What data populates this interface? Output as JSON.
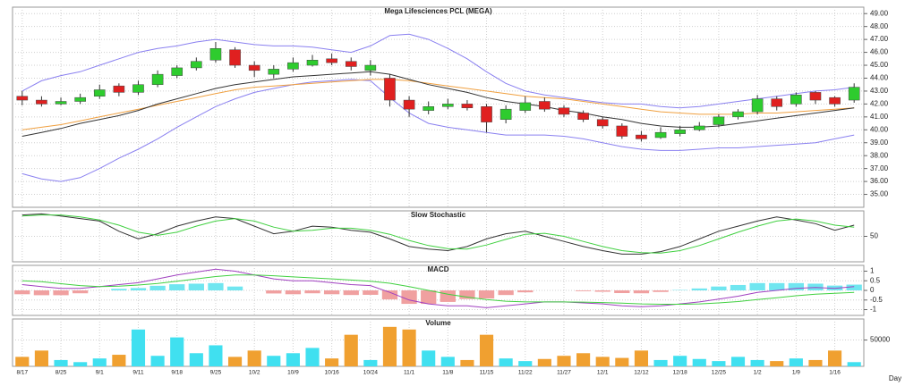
{
  "chart_data": [
    {
      "type": "candlestick",
      "title": "Mega Lifesciences PCL (MEGA)",
      "ylim": [
        34,
        49.5
      ],
      "yticks": [
        {
          "value": 35,
          "label": "35.00"
        },
        {
          "value": 36,
          "label": "36.00"
        },
        {
          "value": 37,
          "label": "37.00"
        },
        {
          "value": 38,
          "label": "38.00"
        },
        {
          "value": 39,
          "label": "39.00"
        },
        {
          "value": 40,
          "label": "40.00"
        },
        {
          "value": 41,
          "label": "41.00"
        },
        {
          "value": 42,
          "label": "42.00"
        },
        {
          "value": 43,
          "label": "43.00"
        },
        {
          "value": 44,
          "label": "44.00"
        },
        {
          "value": 45,
          "label": "45.00"
        },
        {
          "value": 46,
          "label": "46.00"
        },
        {
          "value": 47,
          "label": "47.00"
        },
        {
          "value": 48,
          "label": "48.00"
        },
        {
          "value": 49,
          "label": "49.00"
        }
      ],
      "grid": true,
      "up_color": "#2ecc2e",
      "down_color": "#e02020",
      "open": [
        42.6,
        42.3,
        42.0,
        42.2,
        42.6,
        43.4,
        42.9,
        43.5,
        44.2,
        44.8,
        45.4,
        46.2,
        45.0,
        44.3,
        44.7,
        45.0,
        45.5,
        45.3,
        44.6,
        44.0,
        42.3,
        41.5,
        41.8,
        42.0,
        41.8,
        40.8,
        41.5,
        42.2,
        41.7,
        41.3,
        40.8,
        40.3,
        39.6,
        39.4,
        39.7,
        40.0,
        40.4,
        41.0,
        41.4,
        42.4,
        42.0,
        42.9,
        42.5,
        42.3
      ],
      "high": [
        43.0,
        42.6,
        42.5,
        42.8,
        43.5,
        43.6,
        43.8,
        44.6,
        45.0,
        45.6,
        46.8,
        46.4,
        45.3,
        45.0,
        45.6,
        45.8,
        45.9,
        45.6,
        45.4,
        44.3,
        42.6,
        42.2,
        42.4,
        42.3,
        42.0,
        41.9,
        42.6,
        42.5,
        41.9,
        41.5,
        41.0,
        40.5,
        39.9,
        40.2,
        40.3,
        40.6,
        41.2,
        41.6,
        42.7,
        42.6,
        42.9,
        43.0,
        42.6,
        43.6
      ],
      "low": [
        41.9,
        41.8,
        41.9,
        42.0,
        42.4,
        42.6,
        42.7,
        43.3,
        44.0,
        44.6,
        45.2,
        44.8,
        44.1,
        44.0,
        44.5,
        44.9,
        45.0,
        44.6,
        44.2,
        41.8,
        41.0,
        41.2,
        41.6,
        41.5,
        39.8,
        40.5,
        41.3,
        41.4,
        41.0,
        40.6,
        40.1,
        39.3,
        39.1,
        39.3,
        39.5,
        39.9,
        40.2,
        40.8,
        41.2,
        41.5,
        41.8,
        42.0,
        41.8,
        42.1
      ],
      "close": [
        42.3,
        42.0,
        42.2,
        42.5,
        43.1,
        42.9,
        43.5,
        44.3,
        44.8,
        45.3,
        46.3,
        45.0,
        44.6,
        44.7,
        45.2,
        45.4,
        45.2,
        44.9,
        45.0,
        42.3,
        41.6,
        41.8,
        42.0,
        41.7,
        40.6,
        41.6,
        42.1,
        41.6,
        41.2,
        40.8,
        40.3,
        39.5,
        39.3,
        39.8,
        40.0,
        40.3,
        41.0,
        41.4,
        42.4,
        41.8,
        42.7,
        42.3,
        42.0,
        43.3
      ],
      "overlays": [
        {
          "color": "#8a80f0",
          "values": [
            43.0,
            43.8,
            44.2,
            44.5,
            45.0,
            45.5,
            46.0,
            46.3,
            46.5,
            46.8,
            47.0,
            46.8,
            46.6,
            46.5,
            46.5,
            46.4,
            46.2,
            46.0,
            46.5,
            47.3,
            47.4,
            47.0,
            46.3,
            45.5,
            44.5,
            43.6,
            43.0,
            42.7,
            42.5,
            42.3,
            42.1,
            42.0,
            42.0,
            41.8,
            41.7,
            41.8,
            42.0,
            42.2,
            42.4,
            42.6,
            42.8,
            43.0,
            43.1,
            43.3
          ]
        },
        {
          "color": "#8a80f0",
          "values": [
            36.6,
            36.2,
            36.0,
            36.3,
            37.0,
            37.8,
            38.5,
            39.3,
            40.2,
            41.0,
            41.8,
            42.4,
            42.9,
            43.2,
            43.5,
            43.7,
            43.8,
            43.9,
            43.8,
            42.5,
            41.3,
            40.5,
            40.2,
            40.0,
            39.8,
            39.6,
            39.6,
            39.6,
            39.5,
            39.3,
            39.0,
            38.7,
            38.5,
            38.4,
            38.4,
            38.5,
            38.6,
            38.6,
            38.7,
            38.8,
            38.9,
            39.0,
            39.3,
            39.6
          ]
        },
        {
          "color": "#f0a040",
          "values": [
            40.0,
            40.2,
            40.4,
            40.7,
            41.0,
            41.3,
            41.6,
            41.9,
            42.2,
            42.5,
            42.8,
            43.1,
            43.3,
            43.4,
            43.5,
            43.6,
            43.7,
            43.8,
            43.9,
            43.9,
            43.8,
            43.6,
            43.4,
            43.2,
            43.0,
            42.8,
            42.6,
            42.5,
            42.4,
            42.2,
            42.0,
            41.8,
            41.6,
            41.4,
            41.3,
            41.2,
            41.2,
            41.2,
            41.3,
            41.3,
            41.4,
            41.5,
            41.6,
            41.7
          ]
        },
        {
          "color": "#333333",
          "values": [
            39.5,
            39.8,
            40.1,
            40.5,
            40.8,
            41.1,
            41.5,
            42.0,
            42.4,
            42.8,
            43.2,
            43.5,
            43.7,
            43.9,
            44.1,
            44.2,
            44.3,
            44.4,
            44.5,
            44.3,
            43.9,
            43.5,
            43.2,
            42.9,
            42.5,
            42.2,
            42.0,
            41.8,
            41.5,
            41.3,
            41.0,
            40.8,
            40.5,
            40.3,
            40.2,
            40.2,
            40.3,
            40.5,
            40.7,
            40.9,
            41.1,
            41.3,
            41.5,
            41.7
          ]
        }
      ]
    },
    {
      "type": "line",
      "title": "Slow Stochastic",
      "ylim": [
        0,
        100
      ],
      "yticks": [
        50
      ],
      "grid": true,
      "series": [
        {
          "color": "#333333",
          "values": [
            92,
            94,
            90,
            85,
            80,
            60,
            45,
            55,
            70,
            80,
            88,
            85,
            70,
            55,
            60,
            70,
            68,
            62,
            58,
            45,
            30,
            25,
            22,
            30,
            45,
            55,
            60,
            50,
            40,
            30,
            22,
            15,
            15,
            20,
            30,
            45,
            60,
            70,
            80,
            88,
            82,
            75,
            62,
            72
          ]
        },
        {
          "color": "#40d040",
          "values": [
            90,
            92,
            92,
            88,
            82,
            72,
            58,
            52,
            58,
            70,
            80,
            85,
            80,
            68,
            60,
            62,
            66,
            66,
            62,
            54,
            42,
            32,
            26,
            25,
            33,
            44,
            54,
            56,
            50,
            40,
            30,
            22,
            18,
            17,
            22,
            32,
            45,
            58,
            70,
            80,
            84,
            80,
            72,
            68
          ]
        }
      ]
    },
    {
      "type": "macd",
      "title": "MACD",
      "ylim": [
        -1.3,
        1.3
      ],
      "yticks": [
        1,
        0.5,
        0,
        -0.5,
        -1
      ],
      "grid": true,
      "pos_color": "#70e6f0",
      "neg_color": "#f0a0a0",
      "series": [
        {
          "color": "#a040c0",
          "values": [
            0.3,
            0.2,
            0.1,
            0.1,
            0.2,
            0.3,
            0.4,
            0.6,
            0.8,
            0.95,
            1.1,
            1.0,
            0.8,
            0.6,
            0.5,
            0.5,
            0.4,
            0.3,
            0.25,
            -0.1,
            -0.5,
            -0.7,
            -0.8,
            -0.8,
            -0.9,
            -0.8,
            -0.7,
            -0.6,
            -0.6,
            -0.65,
            -0.7,
            -0.8,
            -0.85,
            -0.8,
            -0.7,
            -0.6,
            -0.45,
            -0.3,
            -0.1,
            0.0,
            0.1,
            0.15,
            0.1,
            0.2
          ]
        },
        {
          "color": "#40d040",
          "values": [
            0.5,
            0.45,
            0.35,
            0.25,
            0.2,
            0.22,
            0.28,
            0.36,
            0.48,
            0.6,
            0.72,
            0.8,
            0.8,
            0.76,
            0.7,
            0.65,
            0.6,
            0.54,
            0.48,
            0.37,
            0.2,
            0.0,
            -0.2,
            -0.35,
            -0.48,
            -0.56,
            -0.6,
            -0.6,
            -0.6,
            -0.61,
            -0.63,
            -0.66,
            -0.7,
            -0.72,
            -0.72,
            -0.7,
            -0.65,
            -0.58,
            -0.48,
            -0.38,
            -0.28,
            -0.2,
            -0.15,
            -0.1
          ]
        }
      ],
      "histogram": [
        -0.2,
        -0.25,
        -0.25,
        -0.15,
        0.0,
        0.08,
        0.12,
        0.24,
        0.32,
        0.35,
        0.38,
        0.2,
        0.0,
        -0.16,
        -0.2,
        -0.15,
        -0.2,
        -0.24,
        -0.23,
        -0.47,
        -0.7,
        -0.7,
        -0.6,
        -0.45,
        -0.42,
        -0.24,
        -0.1,
        0.0,
        0.0,
        -0.04,
        -0.07,
        -0.14,
        -0.15,
        -0.08,
        0.02,
        0.1,
        0.2,
        0.28,
        0.38,
        0.38,
        0.38,
        0.35,
        0.25,
        0.3
      ]
    },
    {
      "type": "bar",
      "title": "Volume",
      "xlabel": "Day",
      "ylim": [
        0,
        90000
      ],
      "yticks": [
        50000
      ],
      "grid": true,
      "up_color": "#40e0f0",
      "down_color": "#f0a030",
      "categories": [
        "8/17",
        null,
        "8/25",
        null,
        "9/1",
        null,
        "9/11",
        null,
        "9/18",
        null,
        "9/25",
        null,
        "10/2",
        null,
        "10/9",
        null,
        "10/16",
        null,
        "10/24",
        null,
        "11/1",
        null,
        "11/8",
        null,
        "11/15",
        null,
        "11/22",
        null,
        "11/27",
        null,
        "12/1",
        null,
        "12/12",
        null,
        "12/18",
        null,
        "12/25",
        null,
        "1/2",
        null,
        "1/9",
        null,
        "1/16",
        null
      ],
      "values": [
        18000,
        30000,
        12000,
        8000,
        15000,
        22000,
        70000,
        20000,
        55000,
        25000,
        40000,
        18000,
        30000,
        20000,
        25000,
        35000,
        15000,
        60000,
        12000,
        75000,
        70000,
        30000,
        18000,
        12000,
        60000,
        15000,
        10000,
        14000,
        20000,
        25000,
        18000,
        16000,
        30000,
        12000,
        20000,
        14000,
        10000,
        18000,
        12000,
        10000,
        15000,
        12000,
        30000,
        8000
      ]
    }
  ]
}
